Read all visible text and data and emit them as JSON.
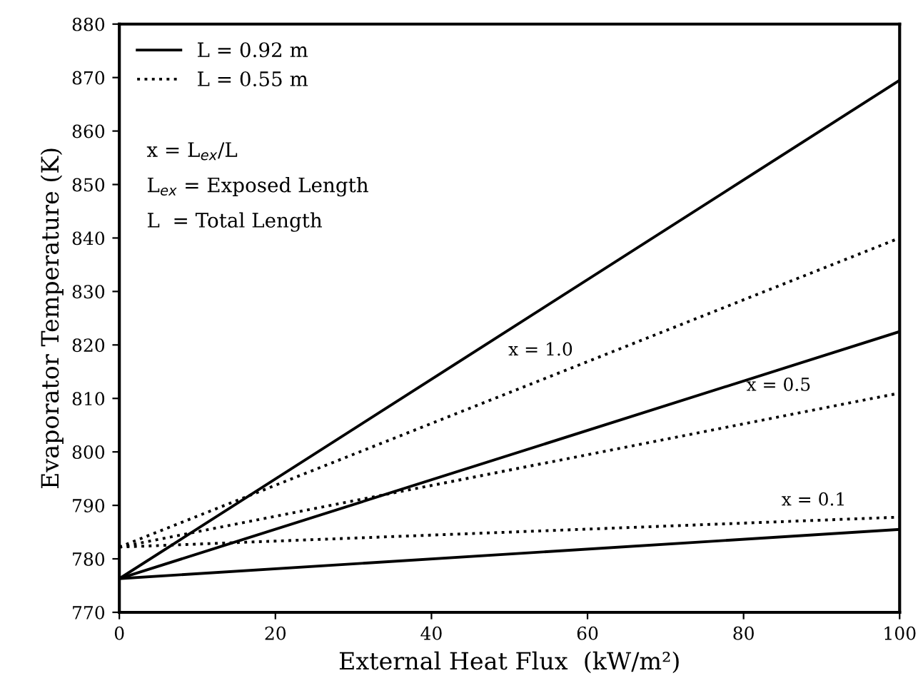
{
  "chart_data": {
    "type": "line",
    "xlabel": "External Heat Flux  (kW/m²)",
    "ylabel": "Evaporator Temperature (K)",
    "x": [
      0,
      100
    ],
    "series": [
      {
        "name": "L = 0.92 m",
        "color": "#000000",
        "line_style": "solid",
        "values": [
          776.3,
          869.5
        ]
      },
      {
        "color": "#000000",
        "line_style": "solid",
        "values": [
          776.3,
          822.5
        ]
      },
      {
        "color": "#000000",
        "line_style": "solid",
        "values": [
          776.3,
          785.5
        ]
      },
      {
        "name": "L = 0.55 m",
        "color": "#000000",
        "line_style": "dotted",
        "values": [
          782.2,
          840
        ]
      },
      {
        "color": "#000000",
        "line_style": "dotted",
        "values": [
          782.2,
          811
        ]
      },
      {
        "color": "#000000",
        "line_style": "dotted",
        "values": [
          782.2,
          787.8
        ]
      }
    ],
    "annotations": [
      "x = L$_{ex}$/L",
      "L$_{ex}$ = Exposed Length",
      "L  = Total Length",
      "x = 1.0",
      "x = 0.5",
      "x = 0.1"
    ],
    "xlim": [
      0,
      100
    ],
    "xticks": [
      0,
      20,
      40,
      60,
      80,
      100
    ],
    "ylim": [
      770,
      880
    ],
    "yticks": [
      770,
      780,
      790,
      800,
      810,
      820,
      830,
      840,
      850,
      860,
      870,
      880
    ],
    "grid": false,
    "legend": "top left",
    "marker": "none"
  }
}
